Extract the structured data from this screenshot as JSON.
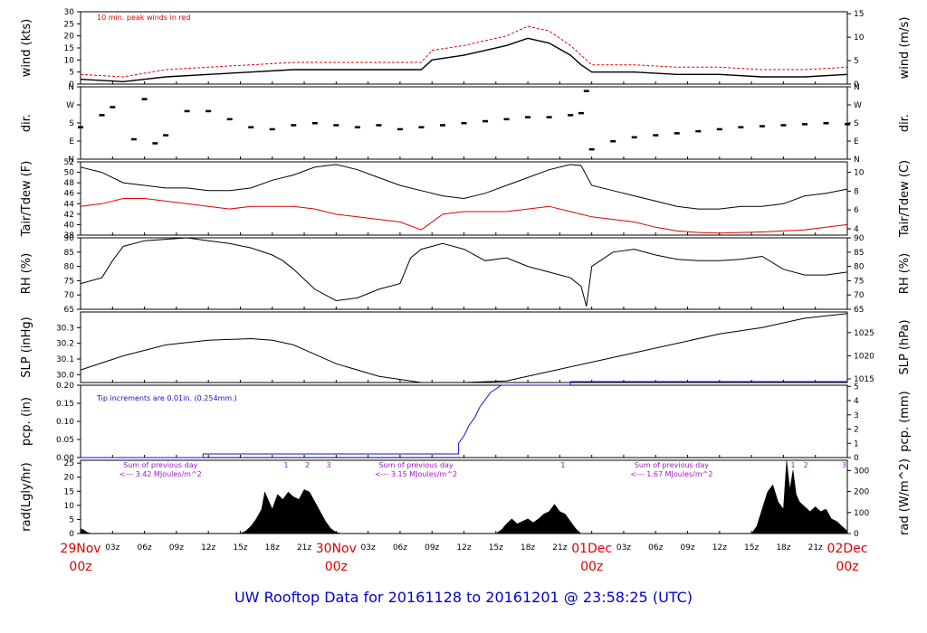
{
  "title": "UW Rooftop Data for 20161128  to  20161201 @ 23:58:25  (UTC)",
  "colors": {
    "black": "#000000",
    "red": "#e00000",
    "blue": "#1010d0",
    "purple": "#9a18c8",
    "title": "#0000cc"
  },
  "x_axis": {
    "hour_ticks": [
      "03z",
      "06z",
      "09z",
      "12z",
      "15z",
      "18z",
      "21z",
      "",
      "03z",
      "06z",
      "09z",
      "12z",
      "15z",
      "18z",
      "21z",
      "",
      "03z",
      "06z",
      "09z",
      "12z",
      "15z",
      "18z",
      "21z"
    ],
    "day_labels": [
      {
        "hour": 0,
        "date": "29Nov",
        "time": "00z"
      },
      {
        "hour": 24,
        "date": "30Nov",
        "time": "00z"
      },
      {
        "hour": 48,
        "date": "01Dec",
        "time": "00z"
      },
      {
        "hour": 72,
        "date": "02Dec",
        "time": "00z"
      }
    ]
  },
  "chart_data": [
    {
      "type": "line",
      "panel": "wind",
      "ylabel_left": "wind (kts)",
      "ylabel_right": "wind (m/s)",
      "ylim": [
        0,
        30
      ],
      "yticks_left": [
        "0",
        "5",
        "10",
        "15",
        "20",
        "25",
        "30"
      ],
      "yticks_right": [
        "0",
        "5",
        "10",
        "15"
      ],
      "annotation": "10 min. peak winds in red",
      "series": [
        {
          "name": "peak",
          "color": "red",
          "x": [
            0,
            4,
            8,
            12,
            16,
            20,
            24,
            28,
            32,
            33,
            36,
            40,
            42,
            44,
            46,
            47,
            48,
            52,
            56,
            60,
            64,
            68,
            72
          ],
          "y": [
            4,
            3,
            6,
            7,
            8,
            9,
            9,
            9,
            9,
            14,
            16,
            20,
            24,
            22,
            16,
            12,
            8,
            8,
            7,
            7,
            6,
            6,
            7
          ]
        },
        {
          "name": "wind",
          "color": "black",
          "x": [
            0,
            4,
            8,
            12,
            16,
            20,
            24,
            28,
            32,
            33,
            36,
            40,
            42,
            44,
            46,
            47,
            48,
            52,
            56,
            60,
            64,
            68,
            72
          ],
          "y": [
            2,
            1,
            3,
            4,
            5,
            6,
            6,
            6,
            6,
            10,
            12,
            16,
            19,
            17,
            12,
            8,
            5,
            5,
            4,
            4,
            3,
            3,
            4
          ]
        }
      ]
    },
    {
      "type": "scatter",
      "panel": "dir",
      "ylabel_left": "dir.",
      "ylabel_right": "dir.",
      "yticks_left": [
        "N",
        "E",
        "S",
        "W",
        "N"
      ],
      "yticks_right": [
        "N",
        "E",
        "S",
        "W",
        "N"
      ],
      "ylim": [
        0,
        360
      ],
      "series": [
        {
          "name": "dir",
          "color": "black",
          "x": [
            0,
            2,
            3,
            5,
            6,
            7,
            8,
            10,
            12,
            14,
            16,
            18,
            20,
            22,
            24,
            26,
            28,
            30,
            32,
            34,
            36,
            38,
            40,
            42,
            44,
            46,
            47,
            47.5,
            48,
            50,
            52,
            54,
            56,
            58,
            60,
            62,
            64,
            66,
            68,
            70,
            72
          ],
          "y": [
            160,
            220,
            260,
            100,
            300,
            80,
            120,
            240,
            240,
            200,
            160,
            150,
            170,
            180,
            170,
            160,
            170,
            150,
            160,
            170,
            180,
            190,
            200,
            210,
            210,
            220,
            230,
            340,
            50,
            90,
            110,
            120,
            130,
            140,
            150,
            160,
            165,
            170,
            175,
            180,
            175
          ]
        }
      ]
    },
    {
      "type": "line",
      "panel": "temp",
      "ylabel_left": "Tair/Tdew (F)",
      "ylabel_right": "Tair/Tdew (C)",
      "ylim": [
        38,
        52
      ],
      "yticks_left": [
        "38",
        "40",
        "42",
        "44",
        "46",
        "48",
        "50",
        "52"
      ],
      "yticks_right": [
        "4",
        "6",
        "8",
        "10"
      ],
      "series": [
        {
          "name": "Tair",
          "color": "black",
          "x": [
            0,
            2,
            4,
            6,
            8,
            10,
            12,
            14,
            16,
            18,
            20,
            22,
            24,
            26,
            28,
            30,
            32,
            34,
            36,
            38,
            40,
            42,
            44,
            46,
            47,
            48,
            50,
            52,
            54,
            56,
            58,
            60,
            62,
            64,
            66,
            68,
            70,
            72
          ],
          "y": [
            51,
            50,
            48,
            47.5,
            47,
            47,
            46.5,
            46.5,
            47,
            48.5,
            49.5,
            51,
            51.5,
            50.5,
            49,
            47.5,
            46.5,
            45.5,
            45,
            46,
            47.5,
            49,
            50.5,
            51.5,
            51.3,
            47.5,
            46.5,
            45.5,
            44.5,
            43.5,
            43,
            43,
            43.5,
            43.5,
            44,
            45.5,
            46,
            46.8
          ]
        },
        {
          "name": "Tdew",
          "color": "red",
          "x": [
            0,
            2,
            4,
            6,
            8,
            10,
            12,
            14,
            16,
            18,
            20,
            22,
            24,
            26,
            28,
            30,
            32,
            34,
            36,
            38,
            40,
            42,
            44,
            46,
            47,
            48,
            50,
            52,
            54,
            56,
            58,
            60,
            62,
            64,
            66,
            68,
            70,
            72
          ],
          "y": [
            43.5,
            44,
            45,
            45,
            44.5,
            44,
            43.5,
            43,
            43.5,
            43.5,
            43.5,
            43,
            42,
            41.5,
            41,
            40.5,
            39,
            42,
            42.5,
            42.5,
            42.5,
            43,
            43.5,
            42.5,
            42,
            41.5,
            41,
            40.5,
            39.5,
            38.8,
            38.5,
            38.4,
            38.5,
            38.6,
            38.8,
            39,
            39.5,
            40
          ]
        }
      ]
    },
    {
      "type": "line",
      "panel": "rh",
      "ylabel_left": "RH (%)",
      "ylabel_right": "RH (%)",
      "ylim": [
        65,
        90
      ],
      "yticks_left": [
        "65",
        "70",
        "75",
        "80",
        "85",
        "90"
      ],
      "yticks_right": [
        "65",
        "70",
        "75",
        "80",
        "85",
        "90"
      ],
      "series": [
        {
          "name": "RH",
          "color": "black",
          "x": [
            0,
            2,
            3,
            4,
            6,
            8,
            10,
            12,
            14,
            16,
            18,
            19,
            20,
            22,
            24,
            26,
            28,
            30,
            31,
            32,
            34,
            36,
            38,
            40,
            42,
            44,
            46,
            47,
            47.5,
            48,
            50,
            52,
            54,
            56,
            58,
            60,
            62,
            64,
            66,
            68,
            70,
            72
          ],
          "y": [
            74,
            76,
            82,
            87,
            89,
            89.5,
            90,
            89,
            88,
            86.5,
            84,
            82,
            79,
            72,
            68,
            69,
            72,
            74,
            83,
            86,
            88,
            86,
            82,
            83,
            80,
            78,
            76,
            73,
            66,
            80,
            85,
            86,
            84,
            82.5,
            82,
            82,
            82.5,
            83.5,
            79,
            77,
            77,
            78
          ]
        }
      ]
    },
    {
      "type": "line",
      "panel": "slp",
      "ylabel_left": "SLP (inHg)",
      "ylabel_right": "SLP (hPa)",
      "ylim": [
        29.95,
        30.4
      ],
      "yticks_left": [
        "30.0",
        "30.1",
        "30.2",
        "30.3"
      ],
      "yticks_right": [
        "1015",
        "1020",
        "1025"
      ],
      "series": [
        {
          "name": "SLP",
          "color": "black",
          "x": [
            0,
            4,
            8,
            12,
            16,
            18,
            20,
            22,
            24,
            28,
            32,
            36,
            40,
            44,
            48,
            52,
            56,
            60,
            64,
            68,
            72
          ],
          "y": [
            30.03,
            30.12,
            30.19,
            30.22,
            30.23,
            30.22,
            30.19,
            30.13,
            30.07,
            29.99,
            29.95,
            29.95,
            29.96,
            30.02,
            30.08,
            30.14,
            30.2,
            30.26,
            30.3,
            30.36,
            30.39
          ]
        }
      ]
    },
    {
      "type": "line",
      "panel": "pcp",
      "ylabel_left": "pcp. (in)",
      "ylabel_right": "pcp. (mm)",
      "ylim": [
        0,
        0.2
      ],
      "yticks_left": [
        "0.00",
        "0.05",
        "0.10",
        "0.15",
        "0.20"
      ],
      "yticks_right": [
        "0",
        "1",
        "2",
        "3",
        "4",
        "5"
      ],
      "annotation": "Tip increments are 0.01in. (0.254mm.)",
      "series": [
        {
          "name": "pcp",
          "color": "blue",
          "x": [
            0,
            11.5,
            11.5,
            35.5,
            35.5,
            36,
            36.5,
            37,
            37.5,
            38,
            38.5,
            39,
            39.5,
            40,
            46,
            46,
            72
          ],
          "y": [
            0,
            0,
            0.01,
            0.01,
            0.04,
            0.06,
            0.09,
            0.11,
            0.14,
            0.16,
            0.18,
            0.19,
            0.2,
            0.2,
            0.2,
            0.21,
            0.21
          ]
        }
      ]
    },
    {
      "type": "area",
      "panel": "rad",
      "ylabel_left": "rad(Lgly/hr)",
      "ylabel_right": "rad (W/m^2)",
      "ylim": [
        0,
        30
      ],
      "yticks_left": [
        "0",
        "5",
        "10",
        "15",
        "20",
        "25"
      ],
      "yticks_right": [
        "0",
        "100",
        "200",
        "300"
      ],
      "annotations": [
        {
          "hour": 7.5,
          "line1": "Sum of previous day",
          "line2": "<--- 3.42 MJoules/m^2"
        },
        {
          "hour": 31.5,
          "line1": "Sum of previous day",
          "line2": "<--- 3.15 MJoules/m^2"
        },
        {
          "hour": 55.5,
          "line1": "Sum of previous day",
          "line2": "<--- 1.67 MJoules/m^2"
        }
      ],
      "markers": [
        {
          "hour": 19.3,
          "label": "1"
        },
        {
          "hour": 21.3,
          "label": "2"
        },
        {
          "hour": 23.3,
          "label": "3"
        },
        {
          "hour": 45.3,
          "label": "1"
        },
        {
          "hour": 66.9,
          "label": "1"
        },
        {
          "hour": 68.1,
          "label": "2"
        },
        {
          "hour": 71.7,
          "label": "3"
        }
      ],
      "series": [
        {
          "name": "rad",
          "color": "black",
          "x": [
            0,
            0.3,
            0.6,
            1,
            15,
            15.5,
            16,
            16.5,
            17,
            17.3,
            17.7,
            18,
            18.5,
            19,
            19.5,
            20,
            20.5,
            21,
            21.5,
            22,
            22.5,
            23,
            23.5,
            24,
            24.5,
            39,
            39.5,
            40,
            40.5,
            41,
            41.5,
            42,
            42.5,
            43,
            43.5,
            44,
            44.5,
            45,
            45.5,
            46,
            46.5,
            47,
            63,
            63.5,
            64,
            64.5,
            65,
            65.5,
            66,
            66.3,
            66.6,
            66.9,
            67.2,
            67.5,
            68,
            68.5,
            69,
            69.5,
            70,
            70.5,
            71,
            71.5,
            72
          ],
          "y": [
            2,
            1.5,
            0.5,
            0,
            0,
            1,
            3,
            6,
            10,
            17,
            13,
            10,
            16,
            14,
            17,
            15,
            14,
            18,
            17,
            13,
            9,
            5,
            2,
            0.5,
            0,
            0,
            1.5,
            4,
            6,
            4,
            5,
            6,
            4.5,
            6,
            8,
            9,
            12,
            9,
            8,
            5,
            2,
            0,
            0,
            3,
            10,
            17,
            20,
            13,
            10,
            30,
            18,
            26,
            16,
            13,
            11,
            9,
            11,
            9,
            10,
            6,
            5,
            3,
            1
          ]
        }
      ]
    }
  ]
}
